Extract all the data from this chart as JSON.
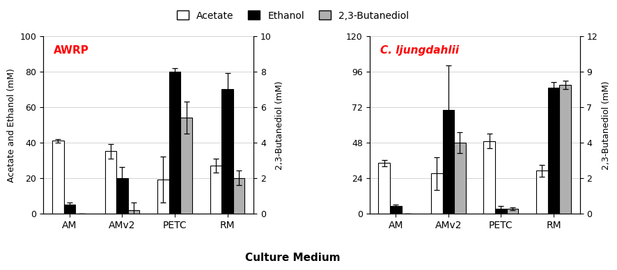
{
  "left_panel": {
    "label": "AWRP",
    "label_color": "red",
    "label_style": "normal",
    "categories": [
      "AM",
      "AMv2",
      "PETC",
      "RM"
    ],
    "acetate": [
      41,
      35,
      19,
      27
    ],
    "ethanol": [
      5,
      20,
      80,
      70
    ],
    "butanediol": [
      0,
      0.2,
      5.4,
      2.0
    ],
    "acetate_err": [
      1,
      4,
      13,
      4
    ],
    "ethanol_err": [
      1,
      6,
      2,
      9
    ],
    "butanediol_err": [
      0,
      0.4,
      0.9,
      0.4
    ],
    "ylim_left": [
      0,
      100
    ],
    "ylim_right": [
      0,
      10
    ],
    "ylabel_left": "Acetate and Ethanol (mM)",
    "ylabel_right": "2,3-Butanediol (mM)"
  },
  "right_panel": {
    "label": "C. ljungdahlii",
    "label_color": "red",
    "label_style": "italic",
    "categories": [
      "AM",
      "AMv2",
      "PETC",
      "RM"
    ],
    "acetate": [
      34,
      27,
      49,
      29
    ],
    "ethanol": [
      5,
      70,
      3,
      85
    ],
    "butanediol": [
      0,
      4.8,
      0.3,
      8.7
    ],
    "acetate_err": [
      2,
      11,
      5,
      4
    ],
    "ethanol_err": [
      1,
      30,
      2,
      4
    ],
    "butanediol_err": [
      0,
      0.7,
      0.1,
      0.3
    ],
    "ylim_left": [
      0,
      120
    ],
    "ylim_right": [
      0,
      12
    ],
    "ylabel_left": "",
    "ylabel_right": "2,3-Butanediol (mM)"
  },
  "xlabel": "Culture Medium",
  "legend_labels": [
    "Acetate",
    "Ethanol",
    "2,3-Butanediol"
  ],
  "bar_colors": [
    "white",
    "black",
    "#b0b0b0"
  ],
  "bar_edgecolors": [
    "black",
    "black",
    "black"
  ],
  "bar_width": 0.22
}
